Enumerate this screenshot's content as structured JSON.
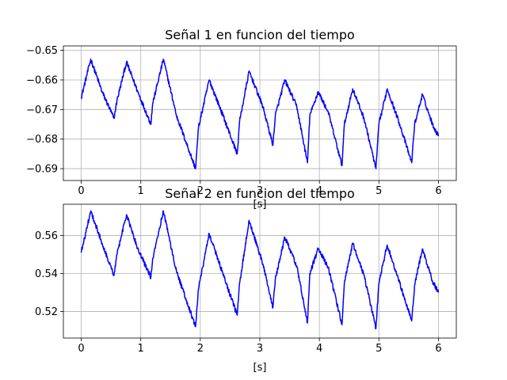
{
  "chart_data": [
    {
      "type": "line",
      "title": "Señal 1 en funcion del tiempo",
      "xlabel": "[s]",
      "ylabel": "",
      "xlim": [
        -0.3,
        6.3
      ],
      "ylim": [
        -0.694,
        -0.6485
      ],
      "xticks": [
        0,
        1,
        2,
        3,
        4,
        5,
        6
      ],
      "xtick_labels": [
        "0",
        "1",
        "2",
        "3",
        "4",
        "5",
        "6"
      ],
      "yticks": [
        -0.69,
        -0.68,
        -0.67,
        -0.66,
        -0.65
      ],
      "ytick_labels": [
        "−0.69",
        "−0.68",
        "−0.67",
        "−0.66",
        "−0.65"
      ],
      "grid": true,
      "color": "#0000ff",
      "series": [
        {
          "x": [
            0,
            0.16,
            0.35,
            0.55,
            0.6,
            0.76,
            0.95,
            1.17,
            1.2,
            1.38,
            1.6,
            1.92,
            1.97,
            2.15,
            2.38,
            2.62,
            2.66,
            2.82,
            3.05,
            3.22,
            3.26,
            3.42,
            3.62,
            3.8,
            3.84,
            3.98,
            4.15,
            4.38,
            4.42,
            4.56,
            4.75,
            4.95,
            5.0,
            5.14,
            5.35,
            5.55,
            5.6,
            5.73,
            5.9,
            6.0
          ],
          "y": [
            -0.666,
            -0.653,
            -0.664,
            -0.673,
            -0.667,
            -0.654,
            -0.664,
            -0.675,
            -0.668,
            -0.653,
            -0.672,
            -0.69,
            -0.676,
            -0.66,
            -0.672,
            -0.685,
            -0.674,
            -0.657,
            -0.669,
            -0.682,
            -0.672,
            -0.66,
            -0.669,
            -0.688,
            -0.672,
            -0.664,
            -0.671,
            -0.689,
            -0.675,
            -0.663,
            -0.673,
            -0.69,
            -0.675,
            -0.663,
            -0.675,
            -0.688,
            -0.675,
            -0.665,
            -0.675,
            -0.679
          ]
        }
      ]
    },
    {
      "type": "line",
      "title": "Señal 2 en funcion del tiempo",
      "xlabel": "[s]",
      "ylabel": "",
      "xlim": [
        -0.3,
        6.3
      ],
      "ylim": [
        0.506,
        0.5765
      ],
      "xticks": [
        0,
        1,
        2,
        3,
        4,
        5,
        6
      ],
      "xtick_labels": [
        "0",
        "1",
        "2",
        "3",
        "4",
        "5",
        "6"
      ],
      "yticks": [
        0.52,
        0.54,
        0.56
      ],
      "ytick_labels": [
        "0.52",
        "0.54",
        "0.56"
      ],
      "grid": true,
      "color": "#0000ff",
      "series": [
        {
          "x": [
            0,
            0.16,
            0.35,
            0.55,
            0.6,
            0.76,
            0.95,
            1.17,
            1.2,
            1.38,
            1.6,
            1.92,
            1.97,
            2.15,
            2.38,
            2.62,
            2.66,
            2.82,
            3.05,
            3.22,
            3.26,
            3.42,
            3.62,
            3.8,
            3.84,
            3.98,
            4.15,
            4.38,
            4.42,
            4.56,
            4.75,
            4.95,
            5.0,
            5.14,
            5.35,
            5.55,
            5.6,
            5.73,
            5.9,
            6.0
          ],
          "y": [
            0.551,
            0.573,
            0.556,
            0.539,
            0.55,
            0.571,
            0.553,
            0.538,
            0.548,
            0.573,
            0.541,
            0.512,
            0.532,
            0.561,
            0.54,
            0.518,
            0.535,
            0.568,
            0.545,
            0.522,
            0.537,
            0.559,
            0.544,
            0.514,
            0.54,
            0.553,
            0.543,
            0.513,
            0.535,
            0.556,
            0.539,
            0.511,
            0.535,
            0.555,
            0.535,
            0.515,
            0.534,
            0.553,
            0.536,
            0.53
          ]
        }
      ]
    }
  ]
}
